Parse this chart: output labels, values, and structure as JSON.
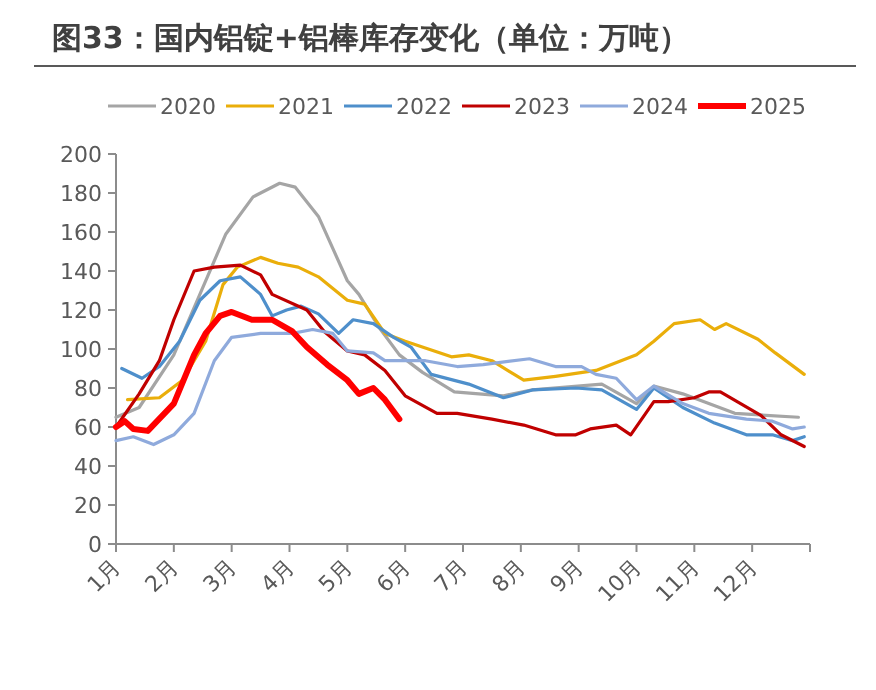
{
  "chart_data": {
    "type": "line",
    "title": "图33：国内铝锭+铝棒库存变化（单位：万吨）",
    "xlim": [
      1,
      13
    ],
    "xticks": [
      {
        "value": 1,
        "label": "1月"
      },
      {
        "value": 2,
        "label": "2月"
      },
      {
        "value": 3,
        "label": "3月"
      },
      {
        "value": 4,
        "label": "4月"
      },
      {
        "value": 5,
        "label": "5月"
      },
      {
        "value": 6,
        "label": "6月"
      },
      {
        "value": 7,
        "label": "7月"
      },
      {
        "value": 8,
        "label": "8月"
      },
      {
        "value": 9,
        "label": "9月"
      },
      {
        "value": 10,
        "label": "10月"
      },
      {
        "value": 11,
        "label": "11月"
      },
      {
        "value": 12,
        "label": "12月"
      },
      {
        "value": 13,
        "label": null
      }
    ],
    "ylim": [
      0,
      200
    ],
    "yticks": [
      0,
      20,
      40,
      60,
      80,
      100,
      120,
      140,
      160,
      180,
      200
    ],
    "grid": false,
    "legend": "top",
    "marker": "none",
    "line_style": "solid",
    "series": [
      {
        "name": "2020",
        "color": "#a5a5a5",
        "x": [
          1.0,
          1.4,
          2.0,
          2.45,
          2.9,
          3.37,
          3.83,
          4.1,
          4.5,
          5.0,
          5.2,
          5.55,
          5.9,
          6.3,
          6.85,
          7.7,
          8.2,
          9.4,
          10.0,
          10.3,
          10.8,
          11.7,
          12.8
        ],
        "values": [
          65,
          70,
          97,
          128,
          159,
          178,
          185,
          183,
          168,
          135,
          128,
          111,
          97,
          88,
          78,
          76,
          79,
          82,
          72,
          81,
          77,
          67,
          65
        ]
      },
      {
        "name": "2021",
        "color": "#eaae0a",
        "x": [
          1.2,
          1.75,
          2.15,
          2.55,
          2.85,
          3.1,
          3.5,
          3.8,
          4.15,
          4.5,
          5.0,
          5.3,
          5.65,
          6.0,
          6.8,
          7.1,
          7.5,
          8.05,
          8.6,
          9.3,
          10.0,
          10.3,
          10.65,
          11.1,
          11.35,
          11.55,
          12.1,
          12.4,
          12.9
        ],
        "values": [
          74,
          75,
          84,
          104,
          133,
          142,
          147,
          144,
          142,
          137,
          125,
          123,
          108,
          104,
          96,
          97,
          94,
          84,
          86,
          89,
          97,
          104,
          113,
          115,
          110,
          113,
          105,
          98,
          87
        ]
      },
      {
        "name": "2022",
        "color": "#4e8fcb",
        "x": [
          1.1,
          1.45,
          1.75,
          2.1,
          2.45,
          2.8,
          3.15,
          3.5,
          3.7,
          3.95,
          4.2,
          4.5,
          4.85,
          5.1,
          5.45,
          5.8,
          6.1,
          6.45,
          7.1,
          7.7,
          8.2,
          8.95,
          9.4,
          10.0,
          10.3,
          10.8,
          11.35,
          11.9,
          12.35,
          12.7,
          12.9
        ],
        "values": [
          90,
          85,
          91,
          104,
          125,
          135,
          137,
          128,
          117,
          120,
          122,
          118,
          108,
          115,
          113,
          106,
          101,
          87,
          82,
          75,
          79,
          80,
          79,
          69,
          80,
          70,
          62,
          56,
          56,
          53,
          55
        ]
      },
      {
        "name": "2023",
        "color": "#c00000",
        "x": [
          1.0,
          1.4,
          1.75,
          2.0,
          2.35,
          2.7,
          3.15,
          3.5,
          3.7,
          4.3,
          4.6,
          5.0,
          5.3,
          5.65,
          6.0,
          6.55,
          6.9,
          7.5,
          8.05,
          8.6,
          8.95,
          9.2,
          9.65,
          9.9,
          10.3,
          10.55,
          11.0,
          11.25,
          11.45,
          11.8,
          12.15,
          12.5,
          12.9
        ],
        "values": [
          60,
          77,
          94,
          115,
          140,
          142,
          143,
          138,
          128,
          120,
          109,
          99,
          97,
          89,
          76,
          67,
          67,
          64,
          61,
          56,
          56,
          59,
          61,
          56,
          73,
          73,
          75,
          78,
          78,
          72,
          66,
          56,
          50
        ]
      },
      {
        "name": "2024",
        "color": "#8faadc",
        "x": [
          1.0,
          1.3,
          1.65,
          2.0,
          2.35,
          2.7,
          3.0,
          3.5,
          4.05,
          4.4,
          4.75,
          5.0,
          5.45,
          5.65,
          6.35,
          6.9,
          7.35,
          8.15,
          8.6,
          9.05,
          9.3,
          9.65,
          10.0,
          10.3,
          10.8,
          11.25,
          11.9,
          12.35,
          12.7,
          12.9
        ],
        "values": [
          53,
          55,
          51,
          56,
          67,
          94,
          106,
          108,
          108,
          110,
          108,
          99,
          98,
          94,
          94,
          91,
          92,
          95,
          91,
          91,
          87,
          85,
          74,
          81,
          72,
          67,
          64,
          63,
          59,
          60
        ]
      },
      {
        "name": "2025",
        "color": "#ff0000",
        "x": [
          1.0,
          1.15,
          1.3,
          1.55,
          2.0,
          2.35,
          2.55,
          2.8,
          3.0,
          3.35,
          3.7,
          4.05,
          4.3,
          4.65,
          5.0,
          5.2,
          5.45,
          5.65,
          5.9
        ],
        "values": [
          60,
          63,
          59,
          58,
          72,
          97,
          108,
          117,
          119,
          115,
          115,
          109,
          101,
          92,
          84,
          77,
          80,
          74,
          64
        ]
      }
    ]
  }
}
